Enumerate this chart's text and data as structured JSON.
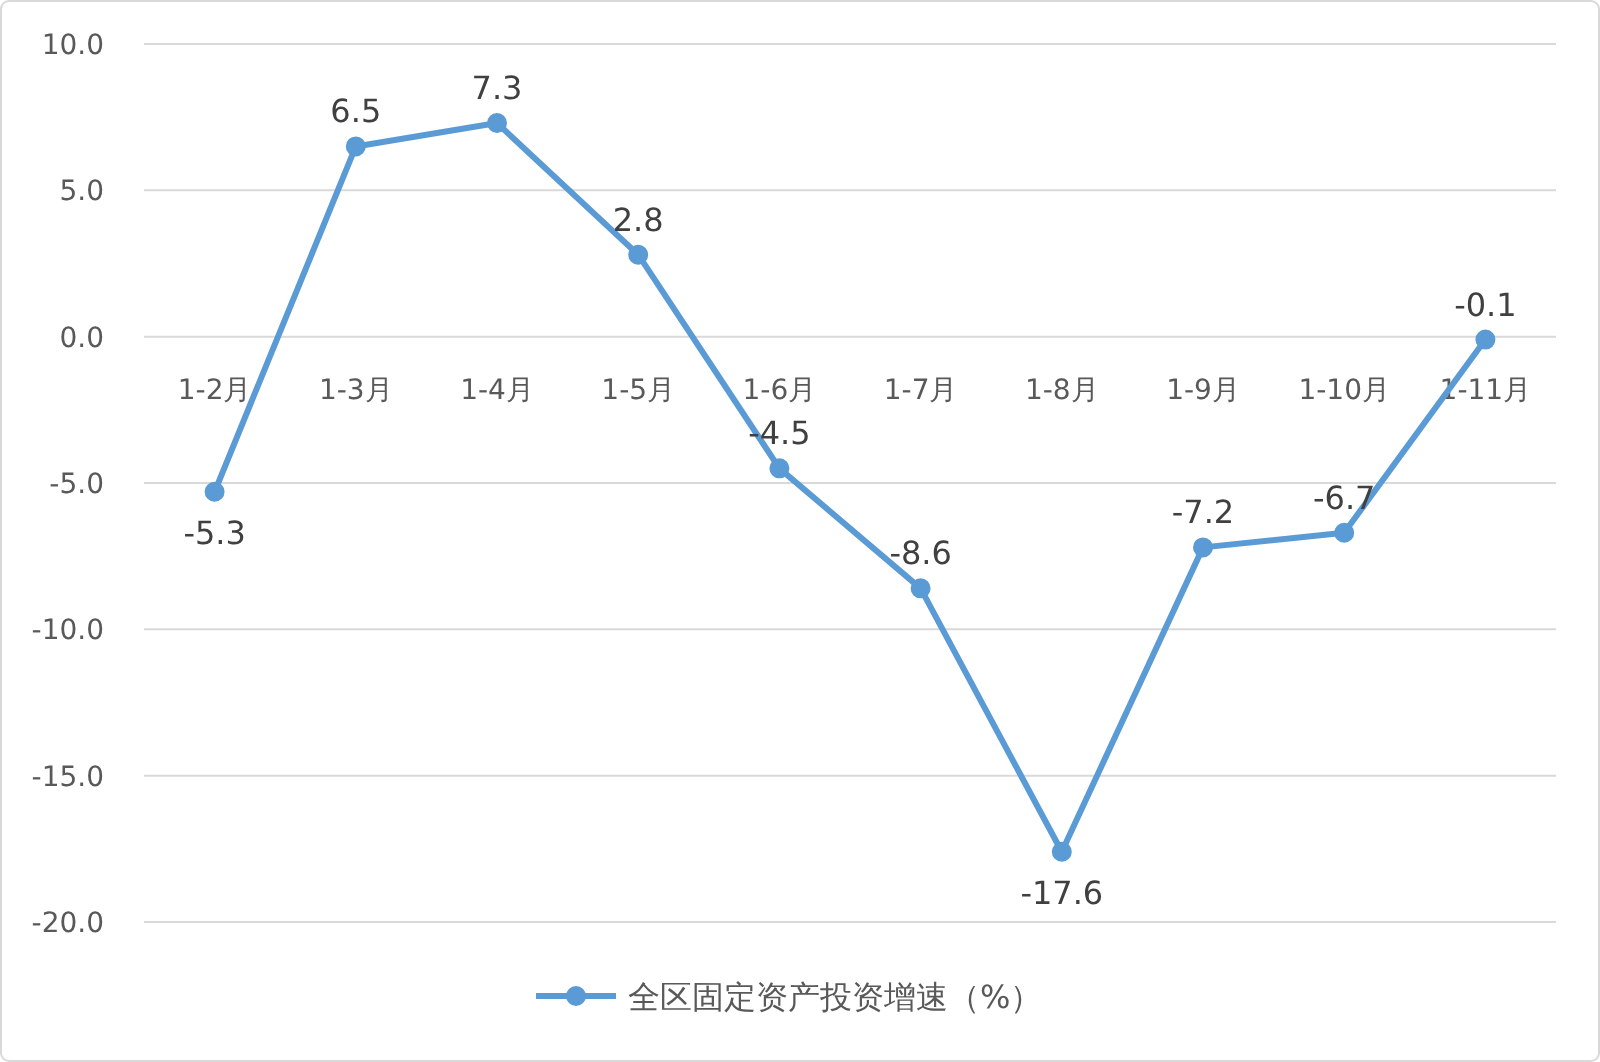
{
  "chart_data": {
    "type": "line",
    "categories": [
      "1-2月",
      "1-3月",
      "1-4月",
      "1-5月",
      "1-6月",
      "1-7月",
      "1-8月",
      "1-9月",
      "1-10月",
      "1-11月"
    ],
    "series": [
      {
        "name": "全区固定资产投资增速（%）",
        "color": "#5b9bd5",
        "values": [
          -5.3,
          6.5,
          7.3,
          2.8,
          -4.5,
          -8.6,
          -17.6,
          -7.2,
          -6.7,
          -0.1
        ]
      }
    ],
    "ylim": [
      -20,
      10
    ],
    "yticks": [
      {
        "value": -20,
        "label": "-20.0"
      },
      {
        "value": -15,
        "label": "-15.0"
      },
      {
        "value": -10,
        "label": "-10.0"
      },
      {
        "value": -5,
        "label": "-5.0"
      },
      {
        "value": 0,
        "label": "0.0"
      },
      {
        "value": 5,
        "label": "5.0"
      },
      {
        "value": 10,
        "label": "10.0"
      }
    ],
    "grid": "y",
    "legend": "bottom",
    "data_labels": true,
    "marker": "circle",
    "line_style": "solid"
  }
}
